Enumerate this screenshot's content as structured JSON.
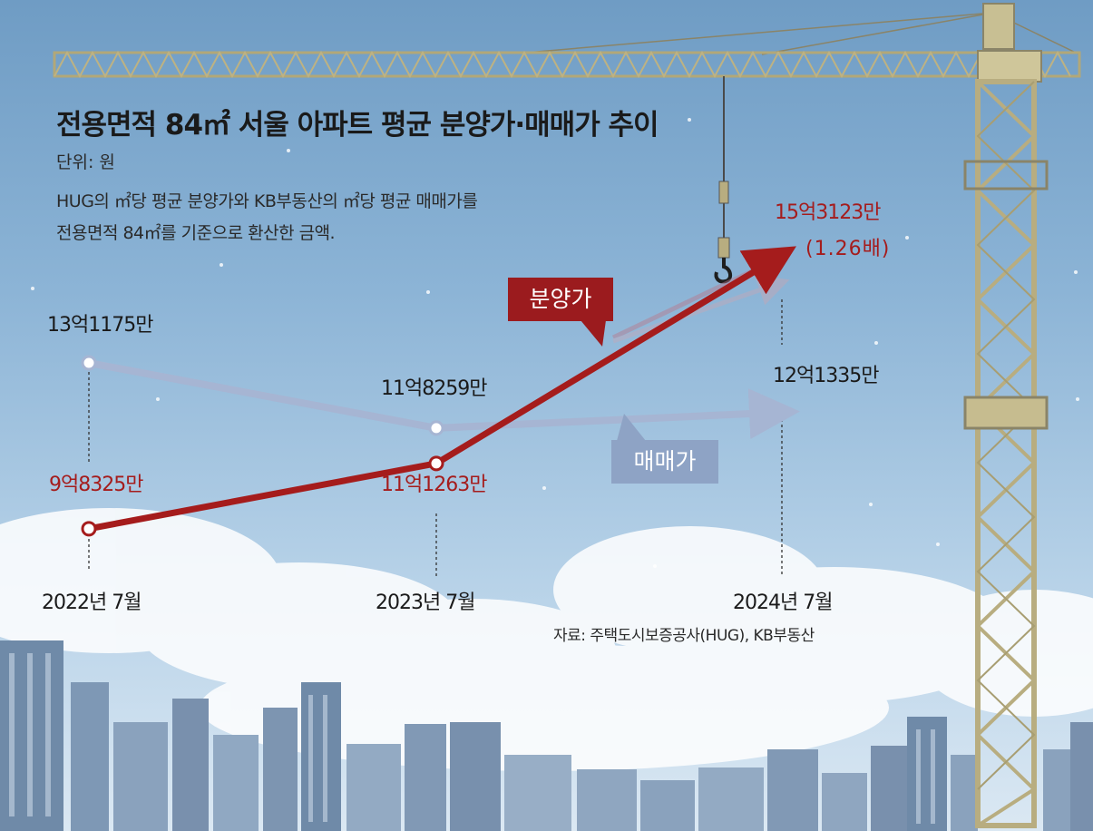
{
  "title": "전용면적 84㎡ 서울 아파트 평균 분양가·매매가 추이",
  "unit": "단위: 원",
  "note_line1": "HUG의 ㎡당 평균 분양가와 KB부동산의 ㎡당 평균 매매가를",
  "note_line2": "전용면적 84㎡를 기준으로 환산한 금액.",
  "source": "자료: 주택도시보증공사(HUG), KB부동산",
  "chart_data": {
    "type": "line",
    "title": "전용면적 84㎡ 서울 아파트 평균 분양가·매매가 추이",
    "unit": "원",
    "categories": [
      "2022년 7월",
      "2023년 7월",
      "2024년 7월"
    ],
    "series": [
      {
        "name": "분양가",
        "color": "#a51c1c",
        "values": [
          983250000,
          1112630000,
          1531230000
        ],
        "labels": [
          "9억8325만",
          "11억1263만",
          "15억3123만"
        ]
      },
      {
        "name": "매매가",
        "color": "#98a8c8",
        "values": [
          1311750000,
          1182590000,
          1213350000
        ],
        "labels": [
          "13억1175만",
          "11억8259만",
          "12억1335만"
        ]
      }
    ],
    "annotations": [
      "(1.26배)"
    ]
  }
}
